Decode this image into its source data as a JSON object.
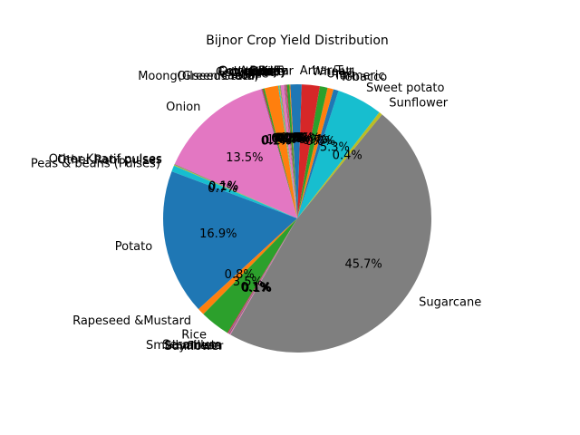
{
  "chart_data": {
    "type": "pie",
    "title": "Bijnor Crop Yield Distribution",
    "start_angle_deg": 90,
    "direction": "counterclockwise",
    "slices": [
      {
        "label": "Arhar/Tur",
        "value": 0.8,
        "pct_label": "0.8%",
        "color": "#1f77b4"
      },
      {
        "label": "Bajra",
        "value": 0.1,
        "pct_label": "0.1%",
        "color": "#ff7f0e"
      },
      {
        "label": "Barley",
        "value": 0.3,
        "pct_label": "0.3%",
        "color": "#2ca02c"
      },
      {
        "label": "Cotton(lint)",
        "value": 0.1,
        "pct_label": "0.1%",
        "color": "#d62728"
      },
      {
        "label": "Dry chillies",
        "value": 0.1,
        "pct_label": "0.1%",
        "color": "#9467bd"
      },
      {
        "label": "Garlic",
        "value": 0.1,
        "pct_label": "0.1%",
        "color": "#8c564b"
      },
      {
        "label": "Gram",
        "value": 0.4,
        "pct_label": "0.4%",
        "color": "#e377c2"
      },
      {
        "label": "Groundnut",
        "value": 0.1,
        "pct_label": "0.1%",
        "color": "#7f7f7f"
      },
      {
        "label": "Jowar",
        "value": 0.1,
        "pct_label": "0.1%",
        "color": "#bcbd22"
      },
      {
        "label": "Linseed",
        "value": 0.1,
        "pct_label": "0.1%",
        "color": "#17becf"
      },
      {
        "label": "Maize",
        "value": 1.6,
        "pct_label": "1.6%",
        "color": "#ff7f0e"
      },
      {
        "label": "Masoor",
        "value": 0.2,
        "pct_label": "0.2%",
        "color": "#2ca02c"
      },
      {
        "label": "Moong(Green Gram)",
        "value": 0.1,
        "pct_label": "0.1%",
        "color": "#d62728"
      },
      {
        "label": "Oilseeds total",
        "value": 0.1,
        "pct_label": "0.1%",
        "color": "#9467bd"
      },
      {
        "label": "Onion",
        "value": 13.5,
        "pct_label": "13.5%",
        "color": "#e377c2"
      },
      {
        "label": "Other Kharif pulses",
        "value": 0.1,
        "pct_label": "0.1%",
        "color": "#7f7f7f"
      },
      {
        "label": "Other Rabi pulses",
        "value": 0.1,
        "pct_label": "0.1%",
        "color": "#bcbd22"
      },
      {
        "label": "Peas & beans (Pulses)",
        "value": 0.7,
        "pct_label": "0.7%",
        "color": "#17becf"
      },
      {
        "label": "Potato",
        "value": 16.9,
        "pct_label": "16.9%",
        "color": "#1f77b4"
      },
      {
        "label": "Rapeseed &Mustard",
        "value": 0.8,
        "pct_label": "0.8%",
        "color": "#ff7f0e"
      },
      {
        "label": "Rice",
        "value": 3.5,
        "pct_label": "3.5%",
        "color": "#2ca02c"
      },
      {
        "label": "Sesamum",
        "value": 0.1,
        "pct_label": "0.1%",
        "color": "#d62728"
      },
      {
        "label": "Small millets",
        "value": 0.1,
        "pct_label": "0.1%",
        "color": "#9467bd"
      },
      {
        "label": "Soyabean",
        "value": 0.1,
        "pct_label": "0.1%",
        "color": "#8c564b"
      },
      {
        "label": "Sunflower",
        "value": 0.1,
        "pct_label": "0.1%",
        "color": "#e377c2"
      },
      {
        "label": "Sugarcane",
        "value": 45.7,
        "pct_label": "45.7%",
        "color": "#7f7f7f"
      },
      {
        "label": "Sunflower",
        "value": 0.4,
        "pct_label": "0.4%",
        "color": "#bcbd22"
      },
      {
        "label": "Sweet potato",
        "value": 5.3,
        "pct_label": "5.3%",
        "color": "#17becf"
      },
      {
        "label": "Tobacco",
        "value": 0.6,
        "pct_label": "0.6%",
        "color": "#1f77b4"
      },
      {
        "label": "Turmeric",
        "value": 0.7,
        "pct_label": "0.7%",
        "color": "#ff7f0e"
      },
      {
        "label": "Urad",
        "value": 0.9,
        "pct_label": "0.9%",
        "color": "#2ca02c"
      },
      {
        "label": "Wheat",
        "value": 2.1,
        "pct_label": "2.1%",
        "color": "#d62728"
      },
      {
        "label": "Arhar/Tur",
        "value": 0.5,
        "pct_label": "0.5%",
        "color": "#1f77b4"
      }
    ]
  }
}
